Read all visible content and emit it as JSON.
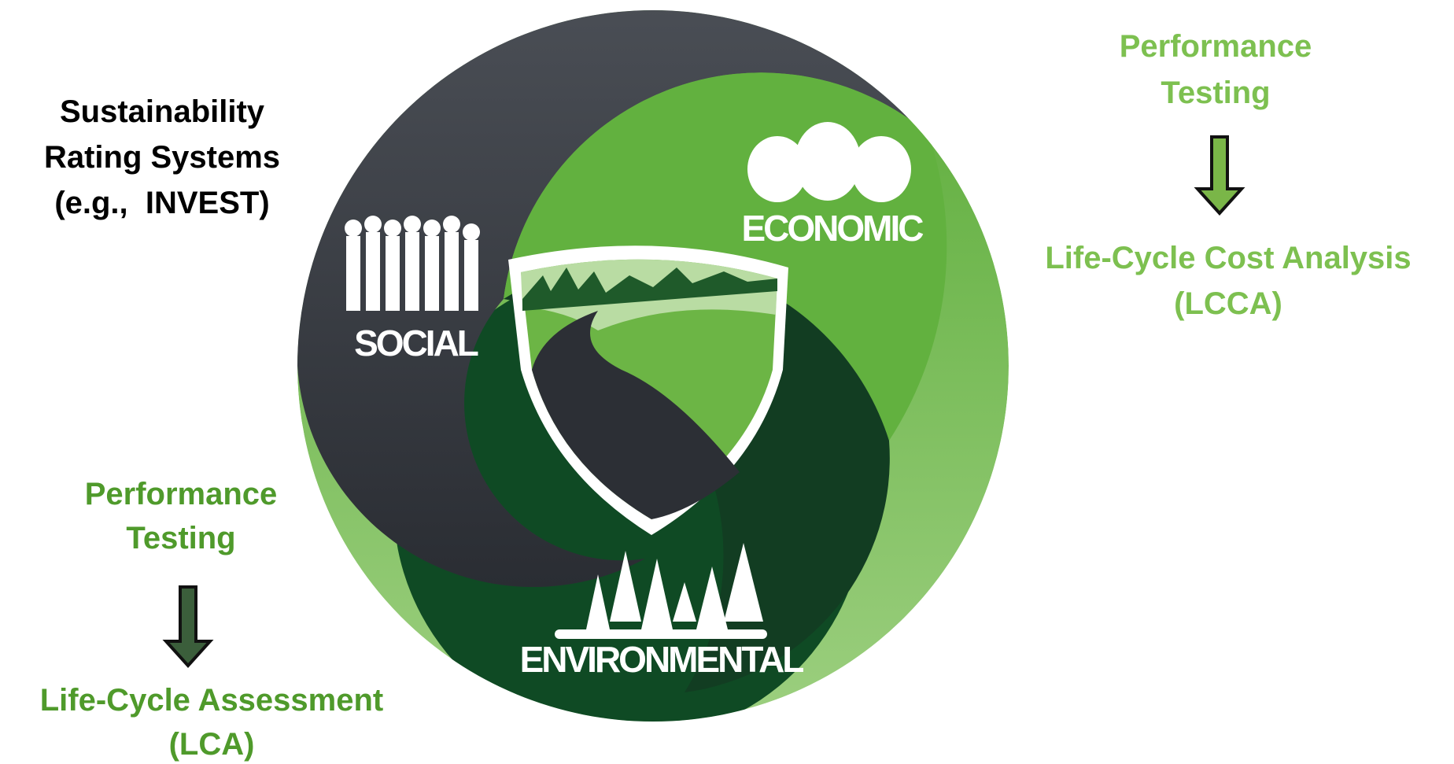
{
  "left_title": {
    "lines": [
      "Sustainability",
      "Rating Systems",
      "(e.g.,  INVEST)"
    ]
  },
  "top_right": {
    "upper": [
      "Performance",
      "Testing"
    ],
    "lower": [
      "Life-Cycle Cost Analysis",
      "(LCCA)"
    ]
  },
  "bottom_left": {
    "upper": [
      "Performance",
      "Testing"
    ],
    "lower": [
      "Life-Cycle Assessment",
      "(LCA)"
    ]
  },
  "circle": {
    "labels": [
      "SOCIAL",
      "ECONOMIC",
      "ENVIRONMENTAL"
    ]
  }
}
